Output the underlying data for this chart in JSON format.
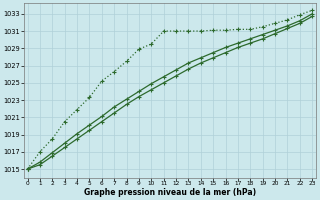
{
  "xlabel": "Graphe pression niveau de la mer (hPa)",
  "ylabel": "",
  "background_color": "#cce8ec",
  "grid_color": "#b0d0d8",
  "line_color": "#2d6a2d",
  "x_values": [
    0,
    1,
    2,
    3,
    4,
    5,
    6,
    7,
    8,
    9,
    10,
    11,
    12,
    13,
    14,
    15,
    16,
    17,
    18,
    19,
    20,
    21,
    22,
    23
  ],
  "series1": [
    1015.0,
    1017.0,
    1018.5,
    1020.5,
    1021.9,
    1023.3,
    1025.2,
    1026.3,
    1027.5,
    1028.9,
    1029.5,
    1031.0,
    1031.0,
    1031.0,
    1031.0,
    1031.1,
    1031.1,
    1031.2,
    1031.2,
    1031.5,
    1031.9,
    1032.3,
    1032.9,
    1033.4
  ],
  "series2": [
    1015.0,
    1015.8,
    1016.9,
    1018.0,
    1019.1,
    1020.1,
    1021.1,
    1022.2,
    1023.1,
    1024.0,
    1024.9,
    1025.7,
    1026.5,
    1027.3,
    1027.9,
    1028.5,
    1029.1,
    1029.6,
    1030.1,
    1030.6,
    1031.1,
    1031.6,
    1032.2,
    1033.0
  ],
  "series3": [
    1015.0,
    1015.5,
    1016.5,
    1017.5,
    1018.5,
    1019.5,
    1020.5,
    1021.5,
    1022.5,
    1023.4,
    1024.2,
    1025.0,
    1025.8,
    1026.6,
    1027.3,
    1027.9,
    1028.5,
    1029.1,
    1029.6,
    1030.1,
    1030.7,
    1031.3,
    1031.9,
    1032.7
  ],
  "ylim_min": 1014,
  "ylim_max": 1034,
  "yticks": [
    1015,
    1017,
    1019,
    1021,
    1023,
    1025,
    1027,
    1029,
    1031,
    1033
  ],
  "xticks": [
    0,
    1,
    2,
    3,
    4,
    5,
    6,
    7,
    8,
    9,
    10,
    11,
    12,
    13,
    14,
    15,
    16,
    17,
    18,
    19,
    20,
    21,
    22,
    23
  ]
}
